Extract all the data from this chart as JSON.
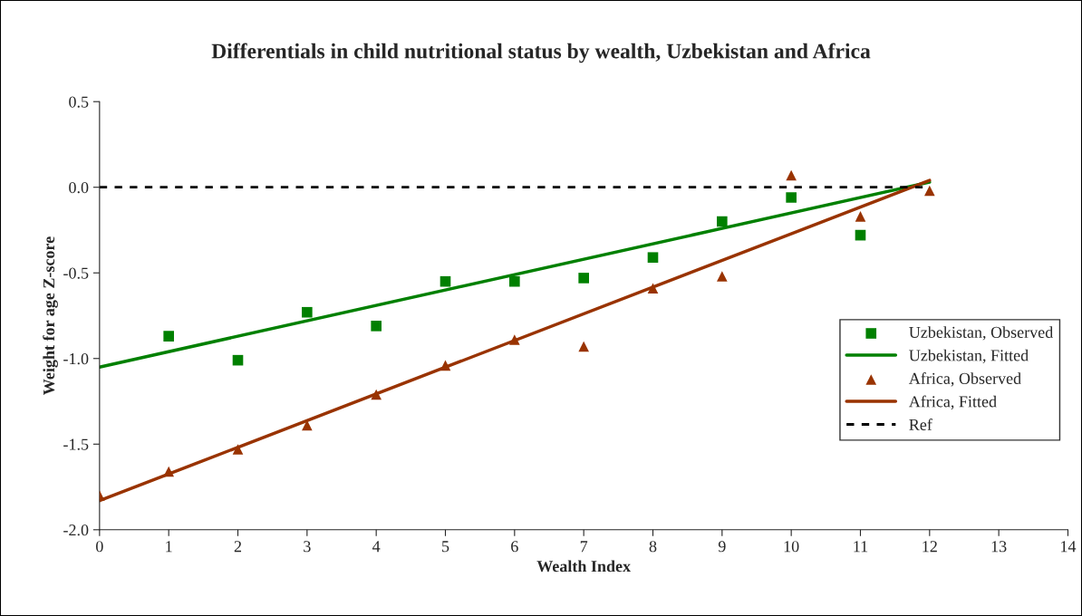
{
  "chart_data": {
    "type": "scatter",
    "title": "Differentials in child nutritional status by wealth, Uzbekistan and Africa",
    "xlabel": "Wealth Index",
    "ylabel": "Weight for age Z-score",
    "xlim": [
      0,
      14
    ],
    "xticks": [
      0,
      1,
      2,
      3,
      4,
      5,
      6,
      7,
      8,
      9,
      10,
      11,
      12,
      13,
      14
    ],
    "ylim": [
      -2.0,
      0.5
    ],
    "yticks": [
      {
        "value": -2.0,
        "label": "-2.0"
      },
      {
        "value": -1.5,
        "label": "-1.5"
      },
      {
        "value": -1.0,
        "label": "-1.0"
      },
      {
        "value": -0.5,
        "label": "-0.5"
      },
      {
        "value": 0.0,
        "label": "0.0"
      },
      {
        "value": 0.5,
        "label": "0.5"
      }
    ],
    "grid": false,
    "legend": "right",
    "series": [
      {
        "name": "Uzbekistan, Observed",
        "marker": "square",
        "color": "#008000",
        "x": [
          1,
          2,
          3,
          4,
          5,
          6,
          7,
          8,
          9,
          10,
          11
        ],
        "values": [
          -0.87,
          -1.01,
          -0.73,
          -0.81,
          -0.55,
          -0.55,
          -0.53,
          -0.41,
          -0.2,
          -0.06,
          -0.28
        ]
      },
      {
        "name": "Uzbekistan, Fitted",
        "type": "line",
        "line_style": "solid",
        "color": "#008000",
        "x": [
          0,
          12
        ],
        "values": [
          -1.05,
          0.03
        ]
      },
      {
        "name": "Africa, Observed",
        "marker": "triangle",
        "color": "#993300",
        "x": [
          0,
          1,
          2,
          3,
          4,
          5,
          6,
          7,
          8,
          9,
          10,
          11,
          12
        ],
        "values": [
          -1.8,
          -1.66,
          -1.53,
          -1.39,
          -1.21,
          -1.04,
          -0.89,
          -0.93,
          -0.59,
          -0.52,
          0.07,
          -0.17,
          -0.02
        ]
      },
      {
        "name": "Africa, Fitted",
        "type": "line",
        "line_style": "solid",
        "color": "#993300",
        "x": [
          0,
          12
        ],
        "values": [
          -1.83,
          0.04
        ]
      },
      {
        "name": "Ref",
        "type": "line",
        "line_style": "dashed",
        "color": "#000000",
        "x": [
          0,
          12
        ],
        "values": [
          0,
          0
        ]
      }
    ]
  }
}
